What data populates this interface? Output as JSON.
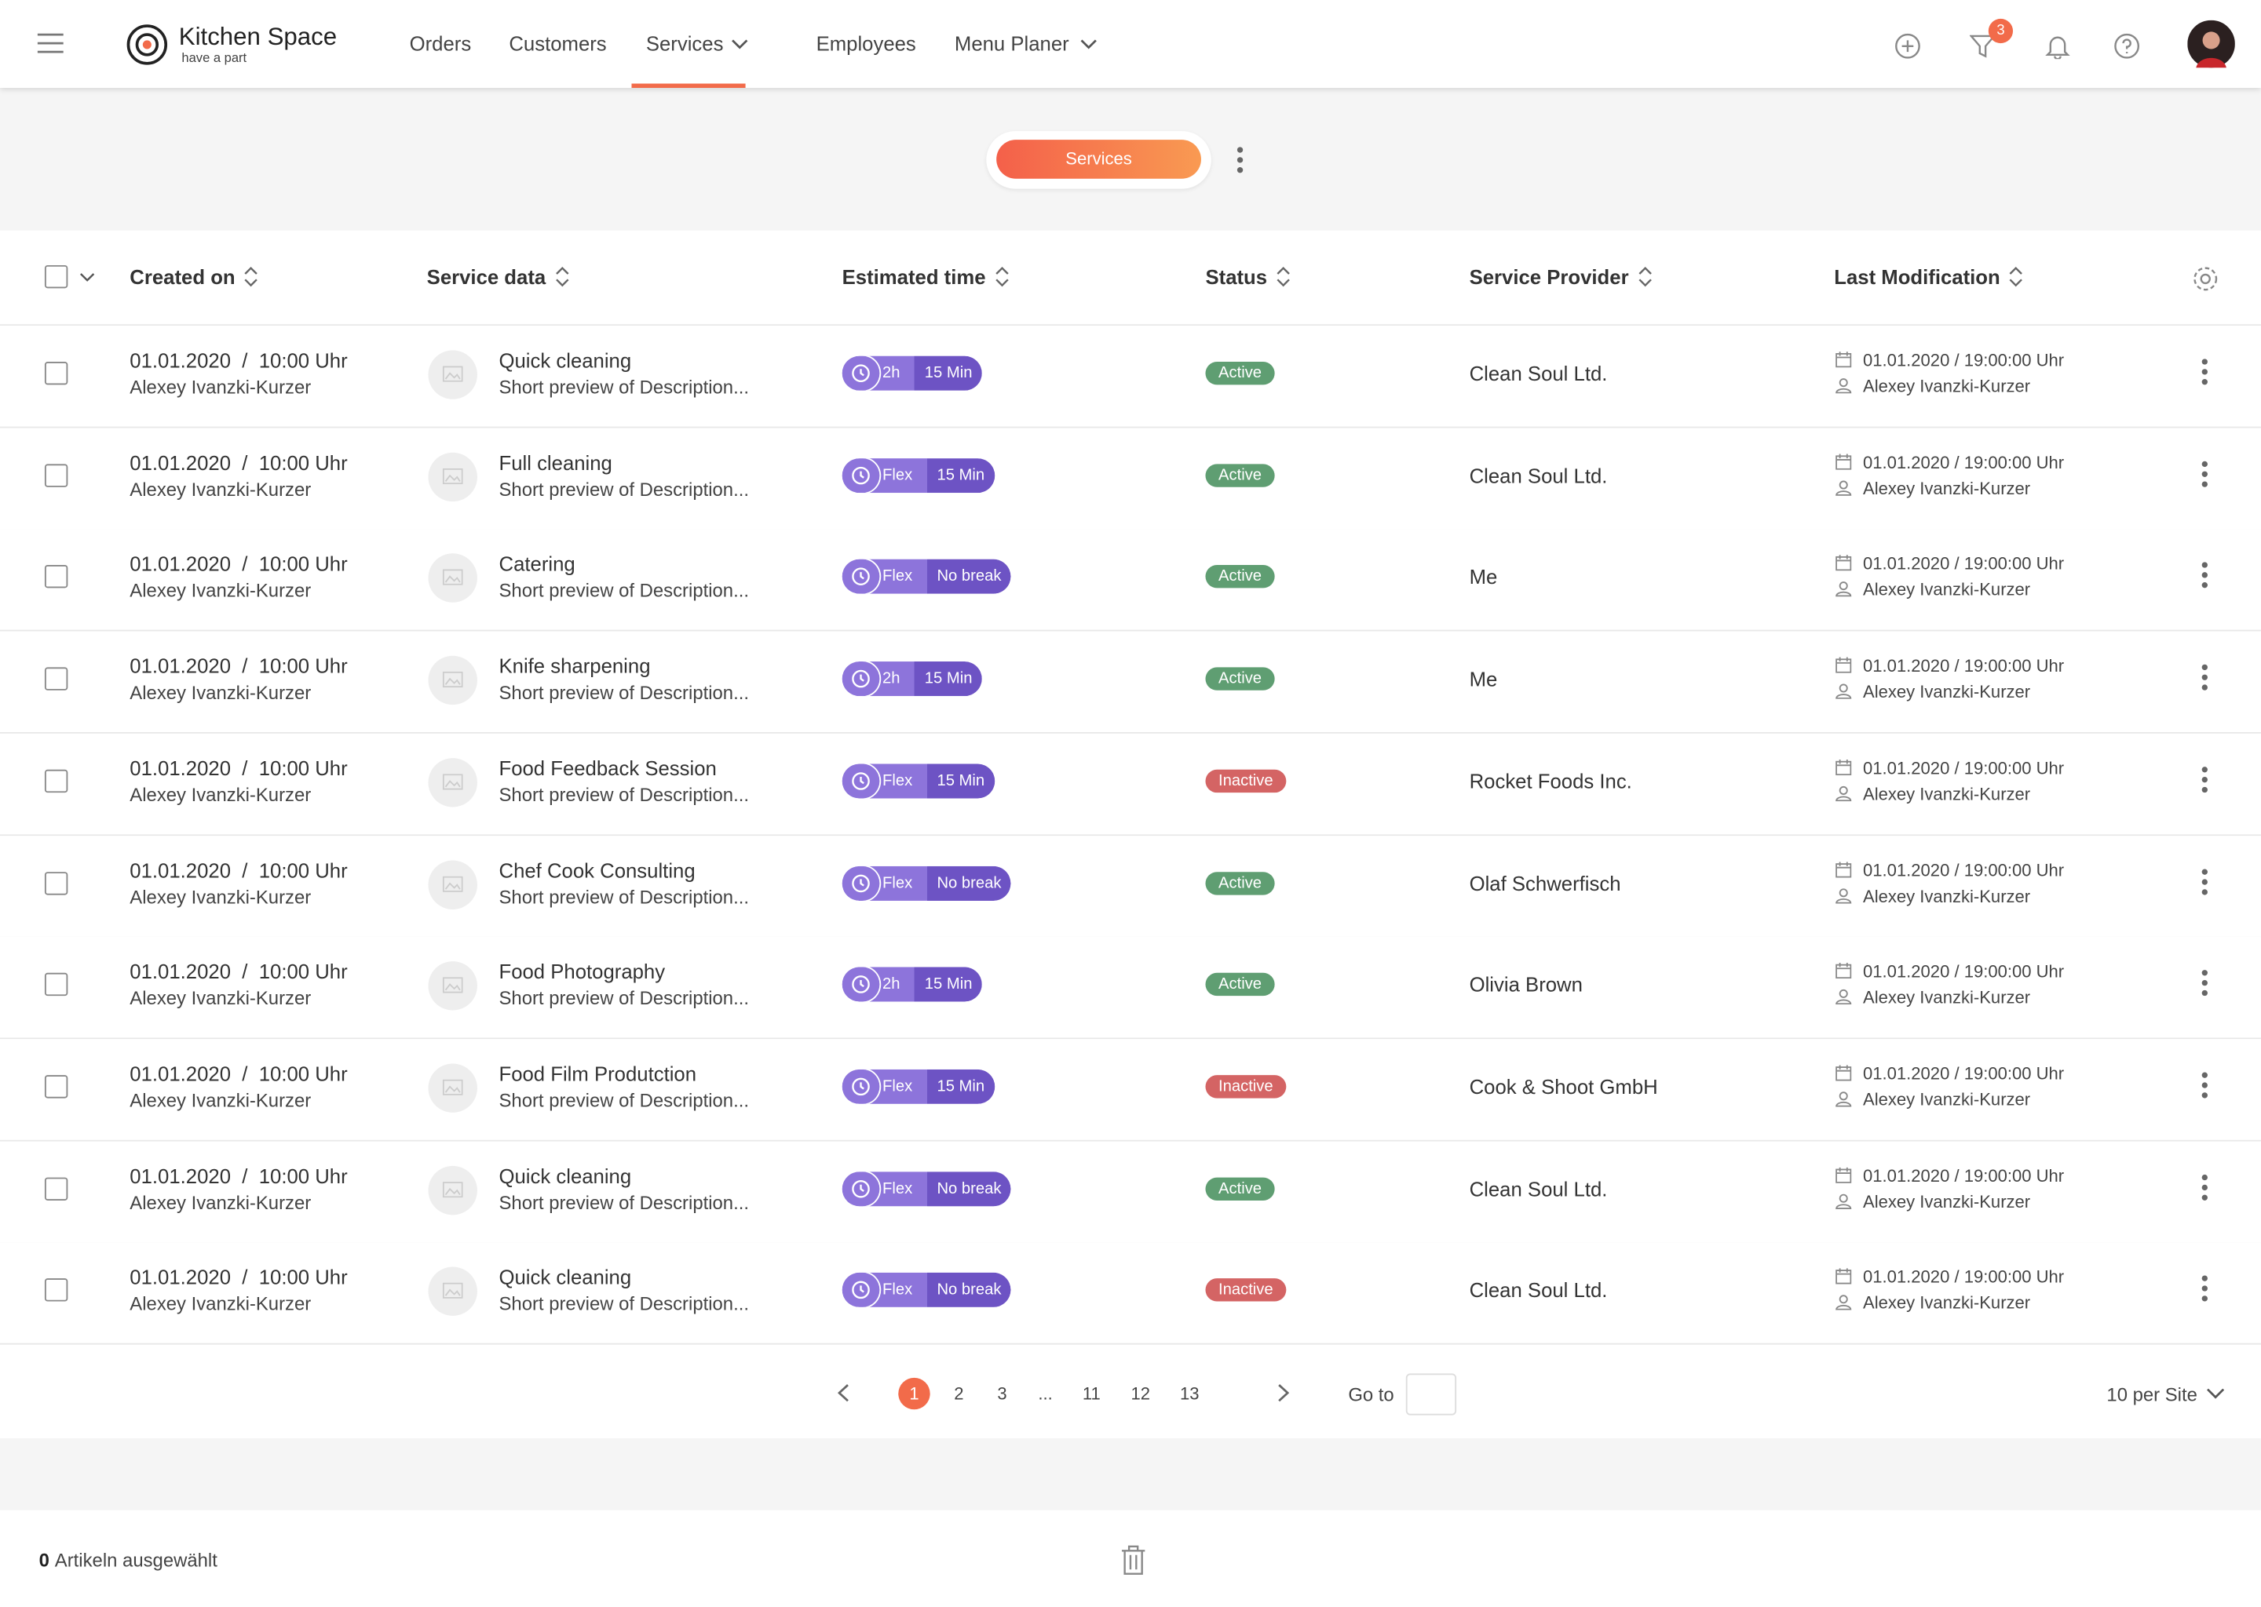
{
  "brand": {
    "name": "Kitchen Space",
    "tagline": "have a part"
  },
  "nav": [
    "Orders",
    "Customers",
    "Services",
    "Employees",
    "Menu Planer"
  ],
  "notification_count": "3",
  "tab": "Services",
  "table": {
    "columns": [
      "Created on",
      "Service data",
      "Estimated time",
      "Status",
      "Service Provider",
      "Last Modification"
    ],
    "rows": [
      {
        "created": "01.01.2020  /  10:00 Uhr",
        "creator": "Alexey Ivanzki-Kurzer",
        "name": "Quick cleaning",
        "description": "Short preview of Description...",
        "duration": [
          "2h",
          "15 Min"
        ],
        "status": "Active",
        "status_color": "#5f9e72",
        "provider": "Clean Soul Ltd.",
        "modified": "01.01.2020 / 19:00:00 Uhr",
        "modified_by": "Alexey Ivanzki-Kurzer"
      },
      {
        "created": "01.01.2020  /  10:00 Uhr",
        "creator": "Alexey Ivanzki-Kurzer",
        "name": "Full cleaning",
        "description": "Short preview of Description...",
        "duration": [
          "Flex",
          "15 Min"
        ],
        "status": "Active",
        "status_color": "#5f9e72",
        "provider": "Clean Soul Ltd.",
        "modified": "01.01.2020 / 19:00:00 Uhr",
        "modified_by": "Alexey Ivanzki-Kurzer"
      },
      {
        "created": "01.01.2020  /  10:00 Uhr",
        "creator": "Alexey Ivanzki-Kurzer",
        "name": "Catering",
        "description": "Short preview of Description...",
        "duration": [
          "Flex",
          "No break"
        ],
        "status": "Active",
        "status_color": "#5f9e72",
        "provider": "Me",
        "modified": "01.01.2020 / 19:00:00 Uhr",
        "modified_by": "Alexey Ivanzki-Kurzer"
      },
      {
        "created": "01.01.2020  /  10:00 Uhr",
        "creator": "Alexey Ivanzki-Kurzer",
        "name": "Knife sharpening",
        "description": "Short preview of Description...",
        "duration": [
          "2h",
          "15 Min"
        ],
        "status": "Active",
        "status_color": "#5f9e72",
        "provider": "Me",
        "modified": "01.01.2020 / 19:00:00 Uhr",
        "modified_by": "Alexey Ivanzki-Kurzer"
      },
      {
        "created": "01.01.2020  /  10:00 Uhr",
        "creator": "Alexey Ivanzki-Kurzer",
        "name": "Food Feedback Session",
        "description": "Short preview of Description...",
        "duration": [
          "Flex",
          "15 Min"
        ],
        "status": "Inactive",
        "status_color": "#d46464",
        "provider": "Rocket Foods Inc.",
        "modified": "01.01.2020 / 19:00:00 Uhr",
        "modified_by": "Alexey Ivanzki-Kurzer"
      },
      {
        "created": "01.01.2020  /  10:00 Uhr",
        "creator": "Alexey Ivanzki-Kurzer",
        "name": "Chef Cook Consulting",
        "description": "Short preview of Description...",
        "duration": [
          "Flex",
          "No break"
        ],
        "status": "Active",
        "status_color": "#5f9e72",
        "provider": "Olaf Schwerfisch",
        "modified": "01.01.2020 / 19:00:00 Uhr",
        "modified_by": "Alexey Ivanzki-Kurzer"
      },
      {
        "created": "01.01.2020  /  10:00 Uhr",
        "creator": "Alexey Ivanzki-Kurzer",
        "name": "Food Photography",
        "description": "Short preview of Description...",
        "duration": [
          "2h",
          "15 Min"
        ],
        "status": "Active",
        "status_color": "#5f9e72",
        "provider": "Olivia Brown",
        "modified": "01.01.2020 / 19:00:00 Uhr",
        "modified_by": "Alexey Ivanzki-Kurzer"
      },
      {
        "created": "01.01.2020  /  10:00 Uhr",
        "creator": "Alexey Ivanzki-Kurzer",
        "name": "Food Film Produtction",
        "description": "Short preview of Description...",
        "duration": [
          "Flex",
          "15 Min"
        ],
        "status": "Inactive",
        "status_color": "#d46464",
        "provider": "Cook & Shoot GmbH",
        "modified": "01.01.2020 / 19:00:00 Uhr",
        "modified_by": "Alexey Ivanzki-Kurzer"
      },
      {
        "created": "01.01.2020  /  10:00 Uhr",
        "creator": "Alexey Ivanzki-Kurzer",
        "name": "Quick cleaning",
        "description": "Short preview of Description...",
        "duration": [
          "Flex",
          "No break"
        ],
        "status": "Active",
        "status_color": "#5f9e72",
        "provider": "Clean Soul Ltd.",
        "modified": "01.01.2020 / 19:00:00 Uhr",
        "modified_by": "Alexey Ivanzki-Kurzer"
      },
      {
        "created": "01.01.2020  /  10:00 Uhr",
        "creator": "Alexey Ivanzki-Kurzer",
        "name": "Quick cleaning",
        "description": "Short preview of Description...",
        "duration": [
          "Flex",
          "No break"
        ],
        "status": "Inactive",
        "status_color": "#d46464",
        "provider": "Clean Soul Ltd.",
        "modified": "01.01.2020 / 19:00:00 Uhr",
        "modified_by": "Alexey Ivanzki-Kurzer"
      }
    ]
  },
  "pagination": {
    "pages": [
      "1",
      "2",
      "3",
      "...",
      "11",
      "12",
      "13"
    ],
    "goto": "Go to",
    "per_page": "10 per Site"
  },
  "footer": {
    "count": "0",
    "label": "Artikeln ausgewählt"
  }
}
